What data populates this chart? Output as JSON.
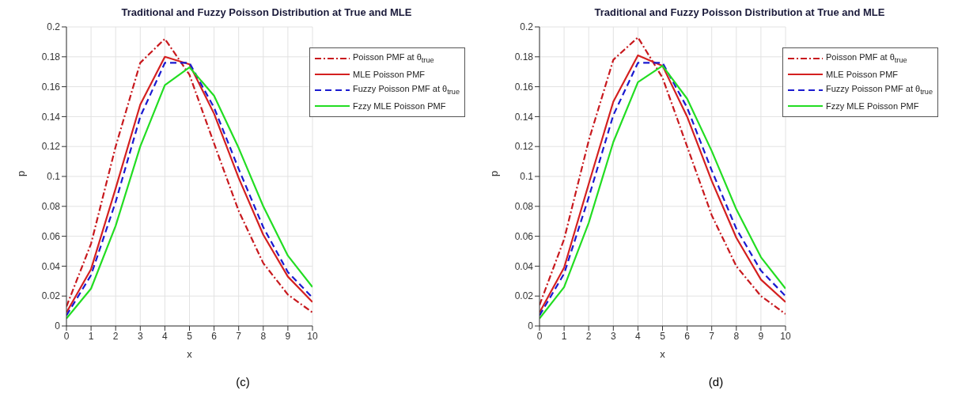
{
  "chart_data": [
    {
      "type": "line",
      "title": "Traditional and Fuzzy Poisson Distribution at True and MLE",
      "xlabel": "x",
      "ylabel": "p",
      "annotations": [
        "(c)"
      ],
      "x": [
        0,
        1,
        2,
        3,
        4,
        5,
        6,
        7,
        8,
        9,
        10
      ],
      "xlim": [
        0,
        10
      ],
      "xticks": [
        0,
        1,
        2,
        3,
        4,
        5,
        6,
        7,
        8,
        9,
        10
      ],
      "ylim": [
        0,
        0.2
      ],
      "yticks": [
        0,
        0.02,
        0.04,
        0.06,
        0.08,
        0.1,
        0.12,
        0.14,
        0.16,
        0.18,
        0.2
      ],
      "grid": true,
      "legend": "top right",
      "marker": "none",
      "series": [
        {
          "name": "Poisson PMF at θ$_{true}$",
          "color": "#c8191e",
          "line_style": "dashdot",
          "values": [
            0.013,
            0.055,
            0.12,
            0.176,
            0.192,
            0.168,
            0.122,
            0.077,
            0.042,
            0.021,
            0.009
          ]
        },
        {
          "name": "MLE Poisson PMF",
          "color": "#d42020",
          "line_style": "solid",
          "values": [
            0.009,
            0.038,
            0.092,
            0.148,
            0.18,
            0.175,
            0.142,
            0.099,
            0.061,
            0.033,
            0.016
          ]
        },
        {
          "name": "Fuzzy Poisson PMF at θ$_{true}$",
          "color": "#1a1ad0",
          "line_style": "dashed",
          "values": [
            0.007,
            0.034,
            0.083,
            0.14,
            0.176,
            0.176,
            0.146,
            0.105,
            0.066,
            0.036,
            0.019
          ]
        },
        {
          "name": "Fzzy MLE Poisson PMF",
          "color": "#22dd22",
          "line_style": "solid",
          "values": [
            0.005,
            0.025,
            0.067,
            0.12,
            0.161,
            0.173,
            0.154,
            0.119,
            0.08,
            0.047,
            0.026
          ]
        }
      ]
    },
    {
      "type": "line",
      "title": "Traditional and Fuzzy Poisson Distribution at True and MLE",
      "xlabel": "x",
      "ylabel": "p",
      "annotations": [
        "(d)"
      ],
      "x": [
        0,
        1,
        2,
        3,
        4,
        5,
        6,
        7,
        8,
        9,
        10
      ],
      "xlim": [
        0,
        10
      ],
      "xticks": [
        0,
        1,
        2,
        3,
        4,
        5,
        6,
        7,
        8,
        9,
        10
      ],
      "ylim": [
        0,
        0.2
      ],
      "yticks": [
        0,
        0.02,
        0.04,
        0.06,
        0.08,
        0.1,
        0.12,
        0.14,
        0.16,
        0.18,
        0.2
      ],
      "grid": true,
      "legend": "top right",
      "marker": "none",
      "series": [
        {
          "name": "Poisson PMF at θ$_{true}$",
          "color": "#c8191e",
          "line_style": "dashdot",
          "values": [
            0.014,
            0.058,
            0.124,
            0.178,
            0.193,
            0.166,
            0.12,
            0.074,
            0.04,
            0.02,
            0.008
          ]
        },
        {
          "name": "MLE Poisson PMF",
          "color": "#d42020",
          "line_style": "solid",
          "values": [
            0.009,
            0.039,
            0.095,
            0.15,
            0.181,
            0.174,
            0.14,
            0.097,
            0.059,
            0.031,
            0.016
          ]
        },
        {
          "name": "Fuzzy Poisson PMF at θ$_{true}$",
          "color": "#1a1ad0",
          "line_style": "dashed",
          "values": [
            0.007,
            0.035,
            0.086,
            0.141,
            0.176,
            0.176,
            0.146,
            0.104,
            0.065,
            0.037,
            0.02
          ]
        },
        {
          "name": "Fzzy MLE Poisson PMF",
          "color": "#22dd22",
          "line_style": "solid",
          "values": [
            0.005,
            0.026,
            0.069,
            0.123,
            0.163,
            0.174,
            0.152,
            0.117,
            0.078,
            0.046,
            0.025
          ]
        }
      ]
    }
  ]
}
